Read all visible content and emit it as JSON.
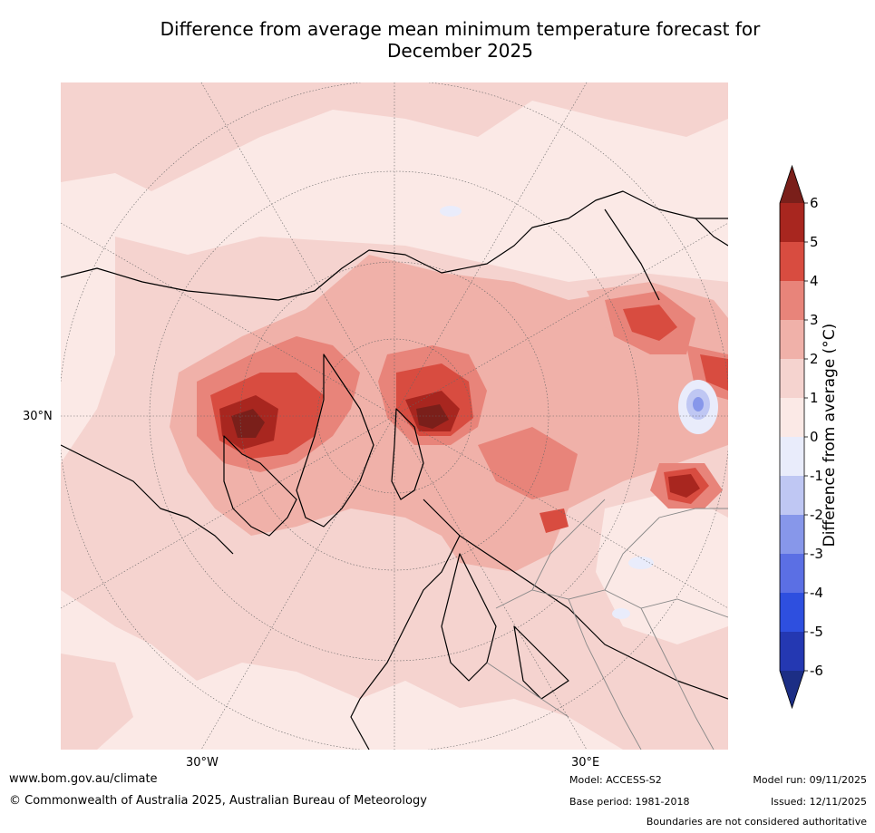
{
  "title_line1": "Difference from average mean minimum temperature forecast for",
  "title_line2": "December 2025",
  "axis_labels": {
    "left_lat": "30°N",
    "bottom_west": "30°W",
    "bottom_east": "30°E"
  },
  "colorbar": {
    "title": "Difference from average (°C)",
    "ticks": [
      "6",
      "5",
      "4",
      "3",
      "2",
      "1",
      "0",
      "-1",
      "-2",
      "-3",
      "-4",
      "-5",
      "-6"
    ],
    "colors": {
      "over": "#7a1f1a",
      "b5_6": "#a8261f",
      "b4_5": "#d84c40",
      "b3_4": "#e8847a",
      "b2_3": "#f0b1a9",
      "b1_2": "#f5d3cf",
      "b0_1": "#fbe9e6",
      "bm1_0": "#e9ecfb",
      "bm2_m1": "#bfc7f3",
      "bm3_m2": "#8797ea",
      "bm4_m3": "#5b6fe4",
      "bm5_m4": "#2e4fdf",
      "bm6_m5": "#2438b2",
      "under": "#1c2e85"
    }
  },
  "footer": {
    "website": "www.bom.gov.au/climate",
    "copyright": "© Commonwealth of Australia 2025, Australian Bureau of Meteorology",
    "model": "Model: ACCESS-S2",
    "base_period": "Base period: 1981-2018",
    "model_run": "Model run: 09/11/2025",
    "issued": "Issued: 12/11/2025",
    "disclaimer": "Boundaries are not considered authoritative"
  }
}
